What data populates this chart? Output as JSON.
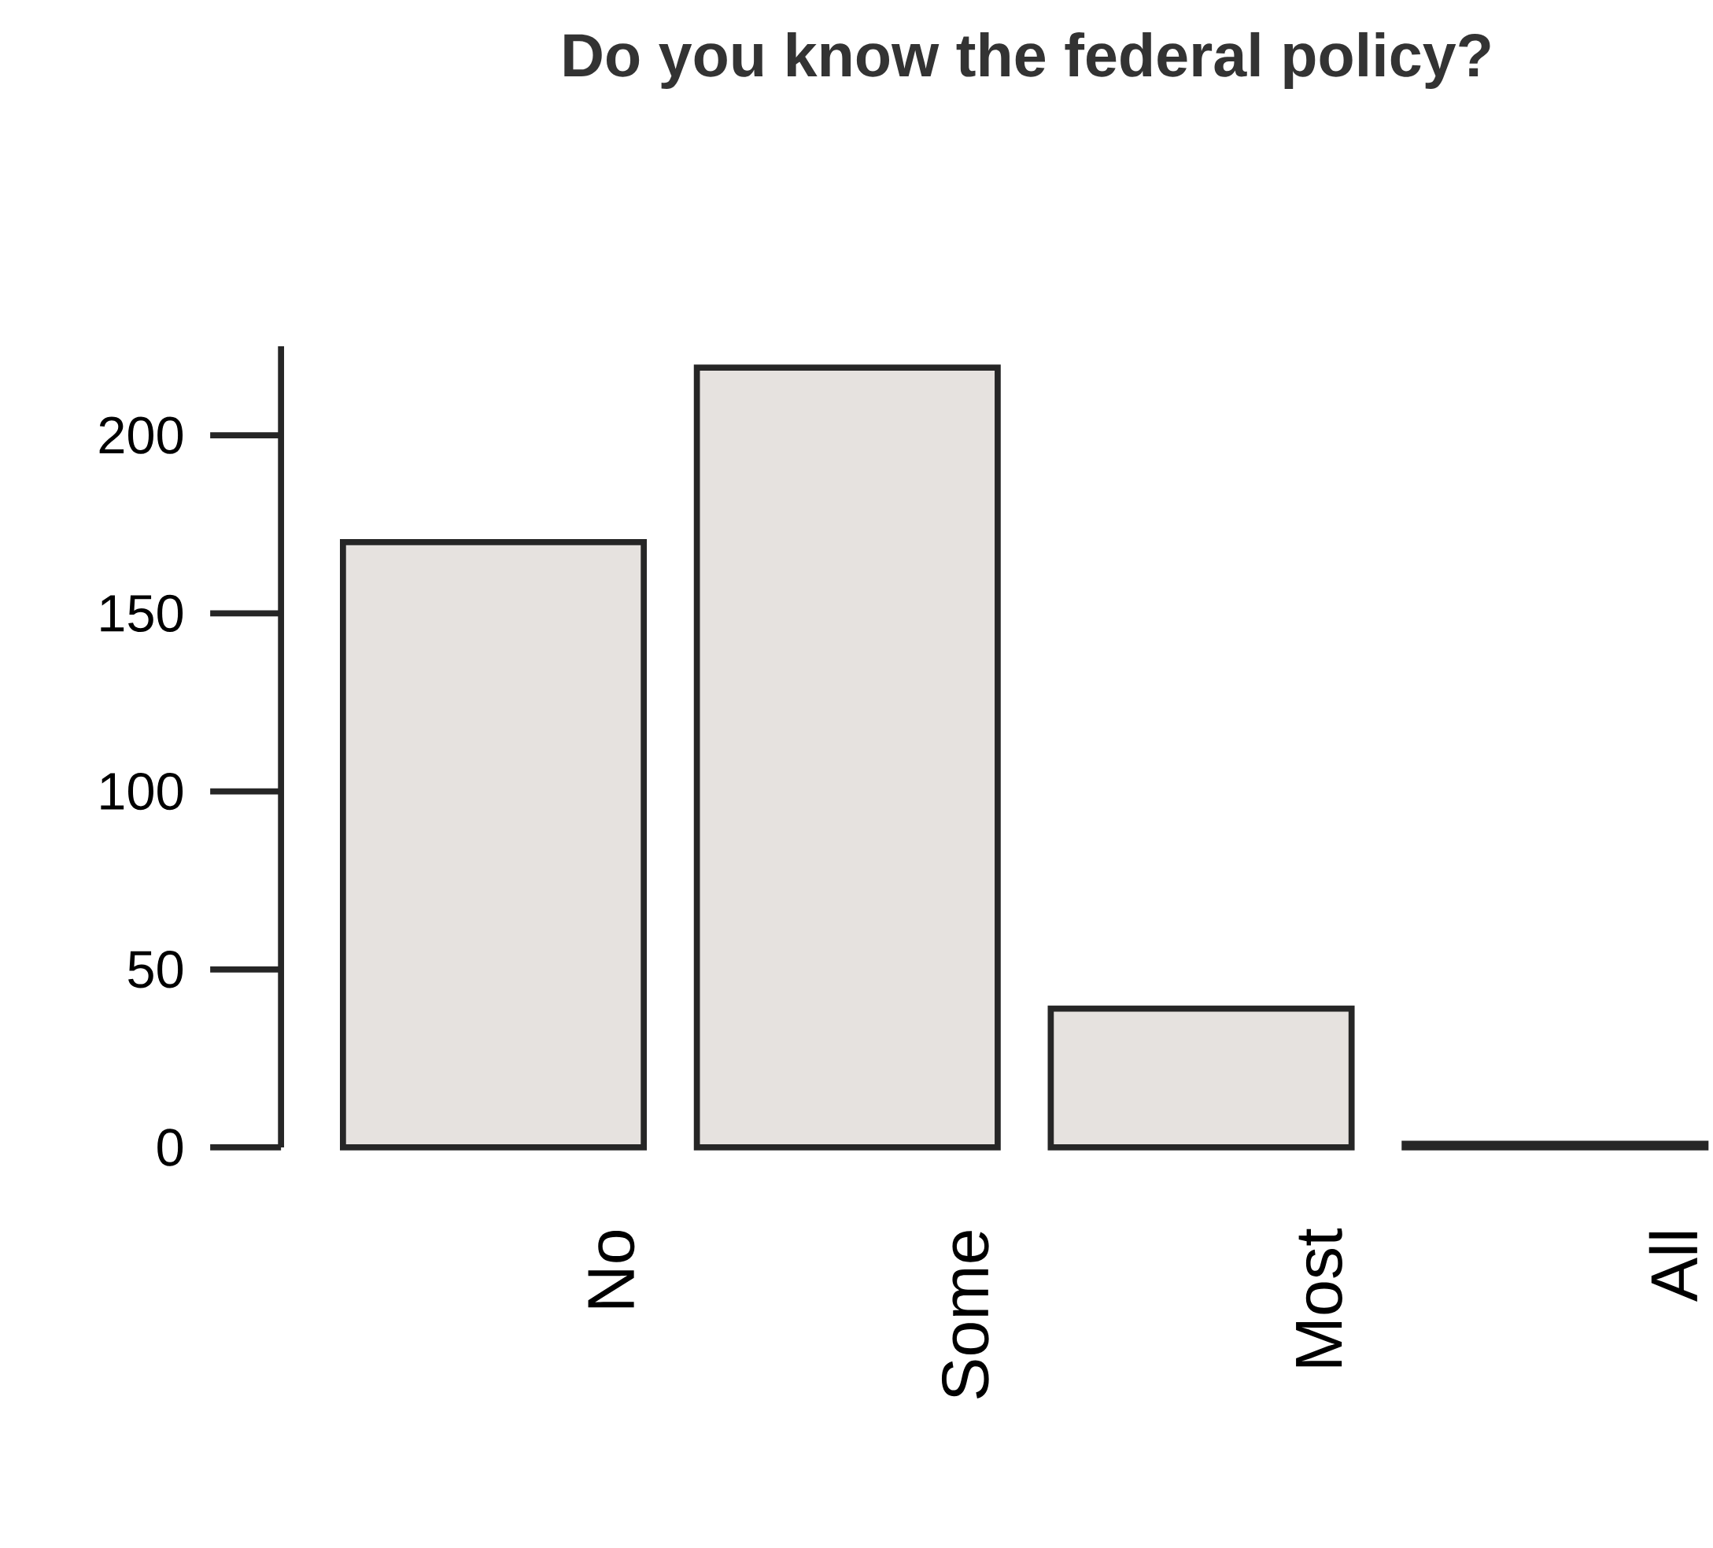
{
  "chart_data": {
    "type": "bar",
    "title": "Do you know the federal policy?",
    "categories": [
      "No",
      "Some",
      "Most",
      "All"
    ],
    "values": [
      170,
      219,
      39,
      1
    ],
    "color": "#e6e2df",
    "ylim": [
      0,
      225
    ],
    "yticks": [
      0,
      50,
      100,
      150,
      200
    ],
    "grid": false
  }
}
